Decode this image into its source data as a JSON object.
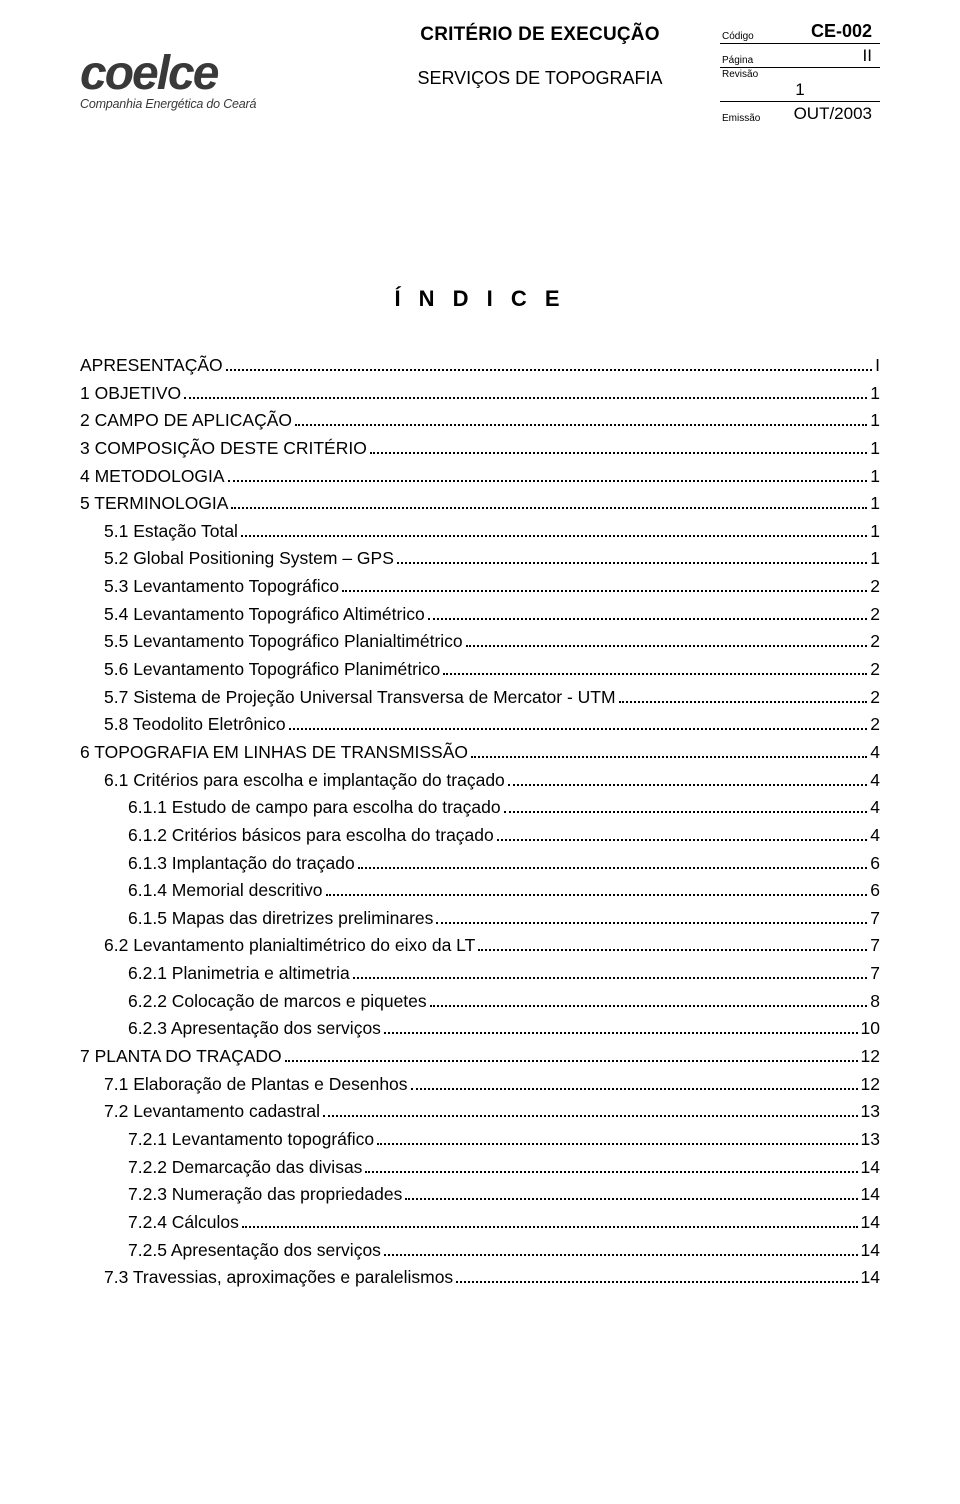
{
  "header": {
    "logo_text": "coelce",
    "logo_sub": "Companhia Energética do Ceará",
    "doc_type": "CRITÉRIO DE EXECUÇÃO",
    "doc_sub": "SERVIÇOS DE TOPOGRAFIA",
    "meta": {
      "codigo_label": "Código",
      "codigo_value": "CE-002",
      "pagina_label": "Página",
      "pagina_value": "II",
      "revisao_label": "Revisão",
      "revisao_value": "1",
      "emissao_label": "Emissão",
      "emissao_value": "OUT/2003"
    }
  },
  "index_title": "Í N D I C E",
  "toc": [
    {
      "indent": 0,
      "label": "APRESENTAÇÃO",
      "page": "I"
    },
    {
      "indent": 0,
      "label": "1   OBJETIVO",
      "page": "1"
    },
    {
      "indent": 0,
      "label": "2   CAMPO DE APLICAÇÃO",
      "page": "1"
    },
    {
      "indent": 0,
      "label": "3   COMPOSIÇÃO DESTE CRITÉRIO",
      "page": "1"
    },
    {
      "indent": 0,
      "label": "4   METODOLOGIA",
      "page": "1"
    },
    {
      "indent": 0,
      "label": "5   TERMINOLOGIA",
      "page": "1"
    },
    {
      "indent": 1,
      "label": "5.1 Estação Total",
      "page": "1"
    },
    {
      "indent": 1,
      "label": "5.2 Global Positioning System – GPS",
      "page": "1"
    },
    {
      "indent": 1,
      "label": "5.3 Levantamento Topográfico",
      "page": "2"
    },
    {
      "indent": 1,
      "label": "5.4 Levantamento Topográfico Altimétrico",
      "page": "2"
    },
    {
      "indent": 1,
      "label": "5.5 Levantamento Topográfico Planialtimétrico",
      "page": "2"
    },
    {
      "indent": 1,
      "label": "5.6 Levantamento Topográfico Planimétrico",
      "page": "2"
    },
    {
      "indent": 1,
      "label": "5.7 Sistema de Projeção Universal Transversa de Mercator - UTM",
      "page": "2"
    },
    {
      "indent": 1,
      "label": "5.8 Teodolito Eletrônico",
      "page": "2"
    },
    {
      "indent": 0,
      "label": "6   TOPOGRAFIA EM LINHAS DE TRANSMISSÃO",
      "page": "4"
    },
    {
      "indent": 1,
      "label": "6.1 Critérios para escolha e implantação do traçado",
      "page": "4"
    },
    {
      "indent": 2,
      "label": "6.1.1 Estudo de campo para escolha do traçado",
      "page": "4"
    },
    {
      "indent": 2,
      "label": "6.1.2 Critérios básicos para escolha do traçado",
      "page": "4"
    },
    {
      "indent": 2,
      "label": "6.1.3 Implantação do traçado",
      "page": "6"
    },
    {
      "indent": 2,
      "label": "6.1.4 Memorial descritivo",
      "page": "6"
    },
    {
      "indent": 2,
      "label": "6.1.5 Mapas das diretrizes preliminares",
      "page": "7"
    },
    {
      "indent": 1,
      "label": "6.2  Levantamento planialtimétrico do eixo da LT",
      "page": "7"
    },
    {
      "indent": 2,
      "label": "6.2.1  Planimetria e altimetria",
      "page": "7"
    },
    {
      "indent": 2,
      "label": "6.2.2 Colocação de marcos e piquetes",
      "page": "8"
    },
    {
      "indent": 2,
      "label": "6.2.3 Apresentação dos serviços",
      "page": "10"
    },
    {
      "indent": 0,
      "label": "7    PLANTA DO TRAÇADO",
      "page": "12"
    },
    {
      "indent": 1,
      "label": "7.1 Elaboração de Plantas e Desenhos",
      "page": "12"
    },
    {
      "indent": 1,
      "label": "7.2 Levantamento cadastral",
      "page": "13"
    },
    {
      "indent": 2,
      "label": "7.2.1 Levantamento topográfico",
      "page": "13"
    },
    {
      "indent": 2,
      "label": "7.2.2 Demarcação das divisas",
      "page": "14"
    },
    {
      "indent": 2,
      "label": "7.2.3 Numeração das propriedades",
      "page": "14"
    },
    {
      "indent": 2,
      "label": "7.2.4 Cálculos",
      "page": "14"
    },
    {
      "indent": 2,
      "label": "7.2.5 Apresentação dos serviços",
      "page": "14"
    },
    {
      "indent": 1,
      "label": "7.3 Travessias, aproximações e paralelismos",
      "page": "14"
    }
  ]
}
